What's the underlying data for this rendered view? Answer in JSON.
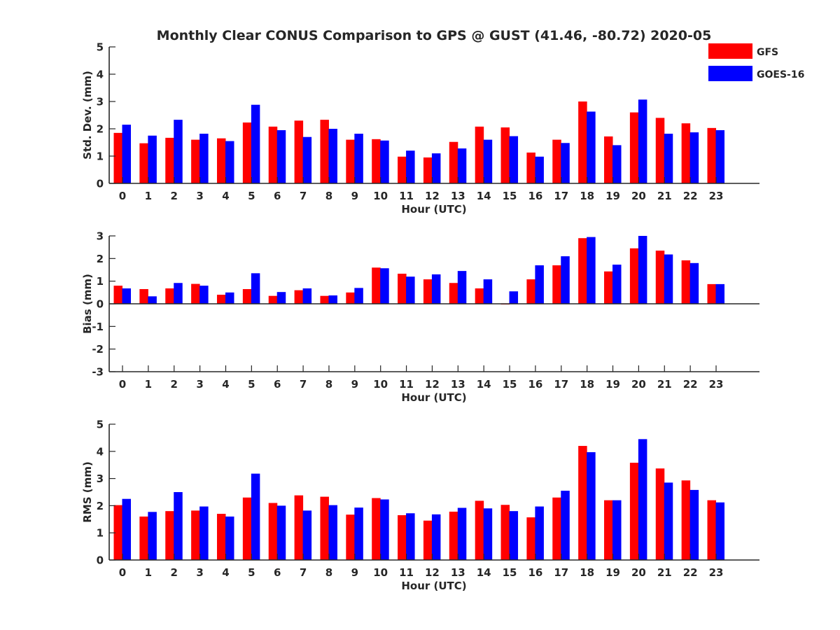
{
  "title": "Monthly Clear CONUS Comparison to GPS @ GUST (41.46, -80.72) 2020-05",
  "legend": {
    "placement": "top-right",
    "entries": [
      {
        "name": "GFS",
        "color": "#ff0000"
      },
      {
        "name": "GOES-16",
        "color": "#0000ff"
      }
    ]
  },
  "chart_data": [
    {
      "type": "bar",
      "xlabel": "Hour (UTC)",
      "ylabel": "Std. Dev. (mm)",
      "ylim": [
        0,
        5
      ],
      "yticks": [
        0,
        1,
        2,
        3,
        4,
        5
      ],
      "categories": [
        "0",
        "1",
        "2",
        "3",
        "4",
        "5",
        "6",
        "7",
        "8",
        "9",
        "10",
        "11",
        "12",
        "13",
        "14",
        "15",
        "16",
        "17",
        "18",
        "19",
        "20",
        "21",
        "22",
        "23"
      ],
      "series": [
        {
          "name": "GFS",
          "color": "#ff0000",
          "values": [
            1.85,
            1.47,
            1.67,
            1.6,
            1.65,
            2.23,
            2.08,
            2.3,
            2.33,
            1.6,
            1.62,
            0.98,
            0.95,
            1.52,
            2.08,
            2.05,
            1.13,
            1.6,
            3.0,
            1.72,
            2.6,
            2.4,
            2.2,
            2.03
          ]
        },
        {
          "name": "GOES-16",
          "color": "#0000ff",
          "values": [
            2.15,
            1.75,
            2.33,
            1.82,
            1.55,
            2.88,
            1.95,
            1.7,
            2.0,
            1.82,
            1.57,
            1.2,
            1.1,
            1.28,
            1.6,
            1.73,
            0.98,
            1.48,
            2.63,
            1.4,
            3.07,
            1.82,
            1.87,
            1.95
          ]
        }
      ]
    },
    {
      "type": "bar",
      "xlabel": "Hour (UTC)",
      "ylabel": "Bias (mm)",
      "ylim": [
        -3,
        3
      ],
      "yticks": [
        -3,
        -2,
        -1,
        0,
        1,
        2,
        3
      ],
      "categories": [
        "0",
        "1",
        "2",
        "3",
        "4",
        "5",
        "6",
        "7",
        "8",
        "9",
        "10",
        "11",
        "12",
        "13",
        "14",
        "15",
        "16",
        "17",
        "18",
        "19",
        "20",
        "21",
        "22",
        "23"
      ],
      "series": [
        {
          "name": "GFS",
          "color": "#ff0000",
          "values": [
            0.8,
            0.65,
            0.68,
            0.88,
            0.4,
            0.65,
            0.35,
            0.6,
            0.35,
            0.5,
            1.6,
            1.33,
            1.08,
            0.92,
            0.68,
            -0.03,
            1.08,
            1.7,
            2.9,
            1.43,
            2.45,
            2.35,
            1.92,
            0.87
          ]
        },
        {
          "name": "GOES-16",
          "color": "#0000ff",
          "values": [
            0.68,
            0.33,
            0.92,
            0.8,
            0.5,
            1.35,
            0.52,
            0.68,
            0.37,
            0.7,
            1.57,
            1.2,
            1.3,
            1.45,
            1.08,
            0.55,
            1.7,
            2.1,
            2.95,
            1.73,
            3.0,
            2.18,
            1.8,
            0.87
          ]
        }
      ]
    },
    {
      "type": "bar",
      "xlabel": "Hour (UTC)",
      "ylabel": "RMS (mm)",
      "ylim": [
        0,
        5
      ],
      "yticks": [
        0,
        1,
        2,
        3,
        4,
        5
      ],
      "categories": [
        "0",
        "1",
        "2",
        "3",
        "4",
        "5",
        "6",
        "7",
        "8",
        "9",
        "10",
        "11",
        "12",
        "13",
        "14",
        "15",
        "16",
        "17",
        "18",
        "19",
        "20",
        "21",
        "22",
        "23"
      ],
      "series": [
        {
          "name": "GFS",
          "color": "#ff0000",
          "values": [
            2.02,
            1.6,
            1.8,
            1.82,
            1.7,
            2.3,
            2.1,
            2.38,
            2.33,
            1.67,
            2.28,
            1.65,
            1.45,
            1.78,
            2.18,
            2.03,
            1.57,
            2.3,
            4.2,
            2.2,
            3.58,
            3.37,
            2.93,
            2.2
          ]
        },
        {
          "name": "GOES-16",
          "color": "#0000ff",
          "values": [
            2.25,
            1.77,
            2.5,
            1.97,
            1.6,
            3.18,
            2.0,
            1.82,
            2.02,
            1.93,
            2.23,
            1.72,
            1.68,
            1.92,
            1.9,
            1.8,
            1.97,
            2.55,
            3.97,
            2.2,
            4.45,
            2.85,
            2.58,
            2.12
          ]
        }
      ]
    }
  ]
}
